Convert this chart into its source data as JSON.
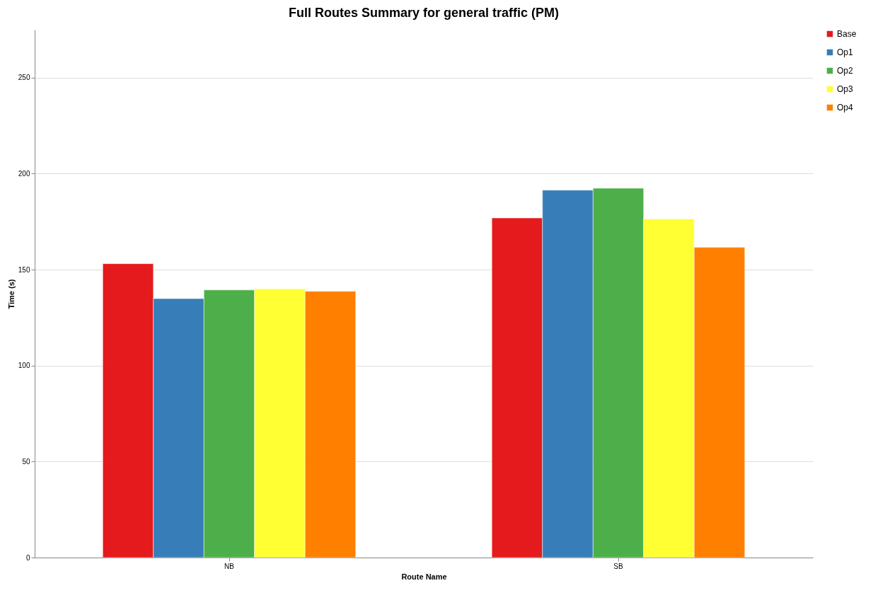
{
  "chart_data": {
    "type": "bar",
    "title": "Full Routes Summary for general traffic (PM)",
    "xlabel": "Route Name",
    "ylabel": "Time (s)",
    "categories": [
      "NB",
      "SB"
    ],
    "series": [
      {
        "name": "Base",
        "color": "#e41a1c",
        "values": [
          153.1,
          176.9
        ]
      },
      {
        "name": "Op1",
        "color": "#377eb8",
        "values": [
          134.9,
          191.4
        ]
      },
      {
        "name": "Op2",
        "color": "#4daf4a",
        "values": [
          139.4,
          192.4
        ]
      },
      {
        "name": "Op3",
        "color": "#ffff33",
        "values": [
          140.0,
          176.4
        ]
      },
      {
        "name": "Op4",
        "color": "#ff7f00",
        "values": [
          138.7,
          161.6
        ]
      }
    ],
    "ylim": [
      0,
      275
    ],
    "yticks": [
      0,
      50,
      100,
      150,
      200,
      250
    ],
    "grid": "y",
    "legend": "right"
  }
}
